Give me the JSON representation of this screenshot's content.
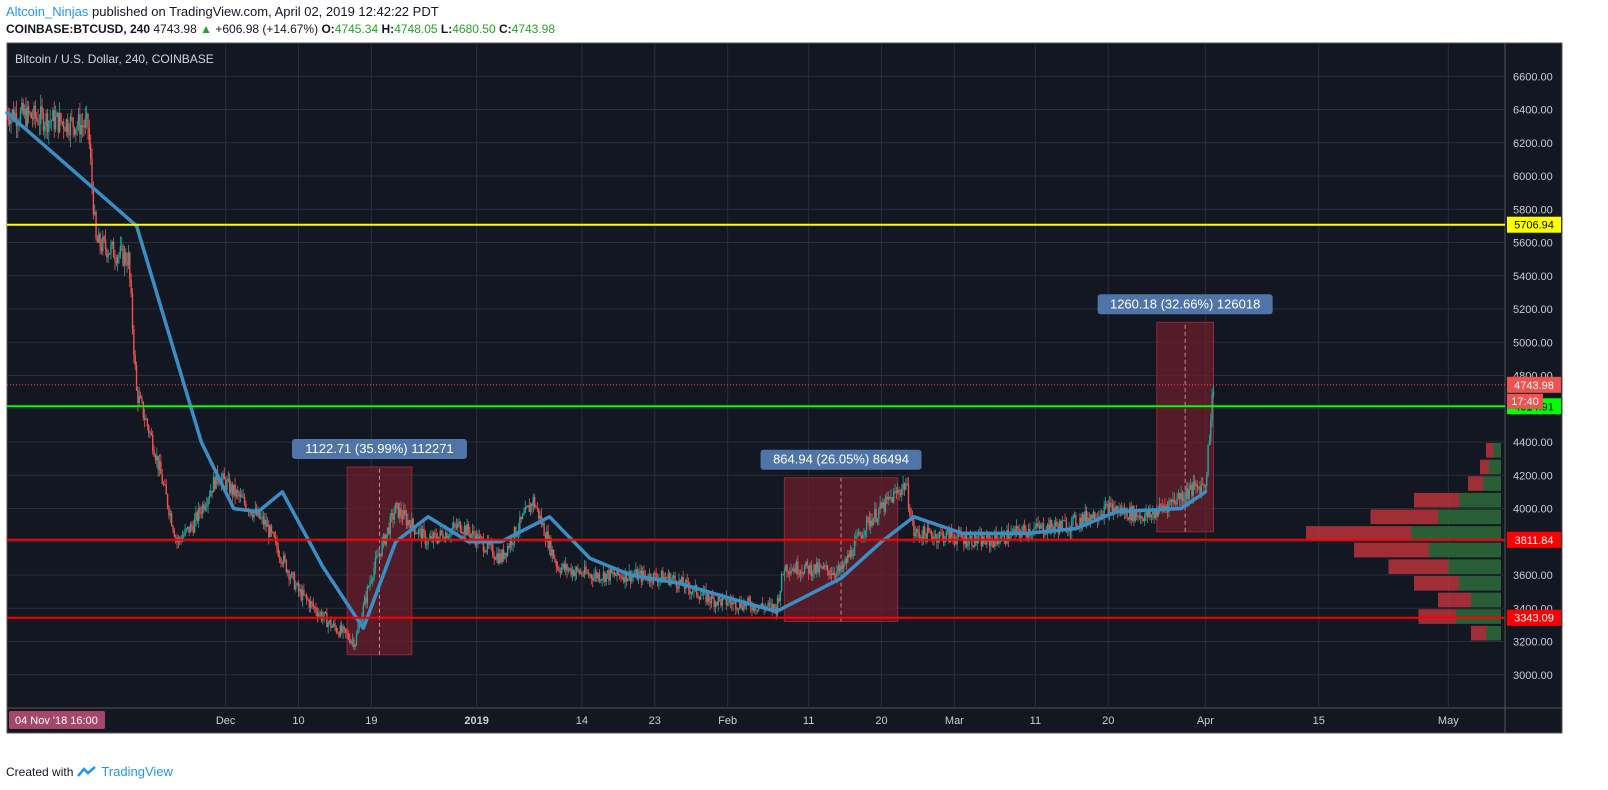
{
  "header": {
    "author": "Altcoin_Ninjas",
    "published_text": "published on TradingView.com, April 02, 2019 12:42:22 PDT",
    "symbol": "COINBASE:BTCUSD, 240",
    "last_price": "4743.98",
    "change": "+606.98 (+14.67%)",
    "open_label": "O:",
    "open": "4745.34",
    "high_label": "H:",
    "high": "4748.05",
    "low_label": "L:",
    "low": "4680.50",
    "close_label": "C:",
    "close": "4743.98"
  },
  "footer": {
    "created_with": "Created with",
    "brand": "TradingView"
  },
  "colors": {
    "background": "#131722",
    "grid": "#2a2e39",
    "ema": "#3b8ec4",
    "up_candle": "#26a69a",
    "down_candle": "#ef5350",
    "yellow_line": "#ffff00",
    "green_line": "#00ff00",
    "red_line": "#ff0000",
    "measure_box": "#6b1f2c",
    "measure_label": "#4f74a8"
  },
  "chart_data": {
    "type": "candlestick",
    "title": "Bitcoin / U.S. Dollar, 240, COINBASE",
    "ylim": [
      2800,
      6800
    ],
    "y_ticks": [
      "6600.00",
      "6400.00",
      "6200.00",
      "6000.00",
      "5800.00",
      "5600.00",
      "5400.00",
      "5200.00",
      "5000.00",
      "4800.00",
      "4600.00",
      "4400.00",
      "4200.00",
      "4000.00",
      "3800.00",
      "3600.00",
      "3400.00",
      "3200.00",
      "3000.00"
    ],
    "x_ticks": [
      {
        "date": "2018-12-01",
        "label": "Dec"
      },
      {
        "date": "2018-12-10",
        "label": "10"
      },
      {
        "date": "2018-12-19",
        "label": "19"
      },
      {
        "date": "2019-01-01",
        "label": "2019"
      },
      {
        "date": "2019-01-14",
        "label": "14"
      },
      {
        "date": "2019-01-23",
        "label": "23"
      },
      {
        "date": "2019-02-01",
        "label": "Feb"
      },
      {
        "date": "2019-02-11",
        "label": "11"
      },
      {
        "date": "2019-02-20",
        "label": "20"
      },
      {
        "date": "2019-03-01",
        "label": "Mar"
      },
      {
        "date": "2019-03-11",
        "label": "11"
      },
      {
        "date": "2019-03-20",
        "label": "20"
      },
      {
        "date": "2019-04-01",
        "label": "Apr"
      },
      {
        "date": "2019-04-15",
        "label": "15"
      },
      {
        "date": "2019-05-01",
        "label": "May"
      }
    ],
    "x_start_label": "04 Nov '18  16:00",
    "x_range": [
      "2018-11-04",
      "2019-05-08"
    ],
    "price_path": [
      [
        "2018-11-04",
        6380
      ],
      [
        "2018-11-14",
        6300
      ],
      [
        "2018-11-15",
        5600
      ],
      [
        "2018-11-19",
        5500
      ],
      [
        "2018-11-20",
        4700
      ],
      [
        "2018-11-22",
        4400
      ],
      [
        "2018-11-25",
        3800
      ],
      [
        "2018-11-27",
        3900
      ],
      [
        "2018-11-30",
        4200
      ],
      [
        "2018-12-03",
        4050
      ],
      [
        "2018-12-06",
        3900
      ],
      [
        "2018-12-10",
        3500
      ],
      [
        "2018-12-14",
        3300
      ],
      [
        "2018-12-17",
        3200
      ],
      [
        "2018-12-19",
        3600
      ],
      [
        "2018-12-22",
        4000
      ],
      [
        "2018-12-26",
        3800
      ],
      [
        "2018-12-30",
        3900
      ],
      [
        "2019-01-04",
        3700
      ],
      [
        "2019-01-08",
        4050
      ],
      [
        "2019-01-11",
        3650
      ],
      [
        "2019-01-15",
        3600
      ],
      [
        "2019-01-20",
        3600
      ],
      [
        "2019-01-25",
        3580
      ],
      [
        "2019-01-30",
        3450
      ],
      [
        "2019-02-04",
        3420
      ],
      [
        "2019-02-07",
        3400
      ],
      [
        "2019-02-08",
        3650
      ],
      [
        "2019-02-15",
        3620
      ],
      [
        "2019-02-18",
        3900
      ],
      [
        "2019-02-23",
        4150
      ],
      [
        "2019-02-24",
        3850
      ],
      [
        "2019-03-01",
        3830
      ],
      [
        "2019-03-05",
        3800
      ],
      [
        "2019-03-10",
        3870
      ],
      [
        "2019-03-15",
        3900
      ],
      [
        "2019-03-20",
        4000
      ],
      [
        "2019-03-25",
        3950
      ],
      [
        "2019-03-29",
        4080
      ],
      [
        "2019-04-01",
        4150
      ],
      [
        "2019-04-02",
        4750
      ]
    ],
    "ema_path": [
      [
        "2018-11-04",
        6380
      ],
      [
        "2018-11-20",
        5700
      ],
      [
        "2018-11-28",
        4400
      ],
      [
        "2018-12-02",
        4000
      ],
      [
        "2018-12-05",
        3980
      ],
      [
        "2018-12-08",
        4100
      ],
      [
        "2018-12-13",
        3650
      ],
      [
        "2018-12-18",
        3280
      ],
      [
        "2018-12-22",
        3800
      ],
      [
        "2018-12-26",
        3950
      ],
      [
        "2018-12-31",
        3800
      ],
      [
        "2019-01-04",
        3800
      ],
      [
        "2019-01-10",
        3950
      ],
      [
        "2019-01-15",
        3700
      ],
      [
        "2019-01-20",
        3600
      ],
      [
        "2019-01-26",
        3550
      ],
      [
        "2019-02-02",
        3450
      ],
      [
        "2019-02-07",
        3380
      ],
      [
        "2019-02-15",
        3580
      ],
      [
        "2019-02-20",
        3800
      ],
      [
        "2019-02-24",
        3950
      ],
      [
        "2019-03-02",
        3850
      ],
      [
        "2019-03-10",
        3850
      ],
      [
        "2019-03-16",
        3880
      ],
      [
        "2019-03-21",
        3980
      ],
      [
        "2019-03-29",
        4000
      ],
      [
        "2019-04-01",
        4100
      ]
    ],
    "horizontal_lines": [
      {
        "price": 5706.94,
        "label": "5706.94",
        "color": "yellow"
      },
      {
        "price": 4614.91,
        "label": "4614.91",
        "color": "green"
      },
      {
        "price": 3811.84,
        "label": "3811.84",
        "color": "red"
      },
      {
        "price": 3343.09,
        "label": "3343.09",
        "color": "red"
      }
    ],
    "last_price_label": "4743.98",
    "countdown_label": "17:40",
    "measurements": [
      {
        "from_date": "2018-12-16",
        "to_date": "2018-12-24",
        "low": 3120,
        "high": 4250,
        "label": "1122.71 (35.99%) 112271"
      },
      {
        "from_date": "2019-02-08",
        "to_date": "2019-02-22",
        "low": 3320,
        "high": 4185,
        "label": "864.94 (26.05%) 86494"
      },
      {
        "from_date": "2019-03-26",
        "to_date": "2019-04-02",
        "low": 3860,
        "high": 5120,
        "label": "1260.18 (32.66%) 126018"
      }
    ],
    "volume_profile": [
      {
        "price": 4350,
        "up": 0.05,
        "down": 0.05
      },
      {
        "price": 4250,
        "up": 0.08,
        "down": 0.06
      },
      {
        "price": 4150,
        "up": 0.12,
        "down": 0.1
      },
      {
        "price": 4050,
        "up": 0.28,
        "down": 0.3
      },
      {
        "price": 3950,
        "up": 0.42,
        "down": 0.45
      },
      {
        "price": 3850,
        "up": 0.6,
        "down": 0.7
      },
      {
        "price": 3750,
        "up": 0.48,
        "down": 0.5
      },
      {
        "price": 3650,
        "up": 0.35,
        "down": 0.4
      },
      {
        "price": 3550,
        "up": 0.28,
        "down": 0.3
      },
      {
        "price": 3450,
        "up": 0.2,
        "down": 0.22
      },
      {
        "price": 3350,
        "up": 0.3,
        "down": 0.25
      },
      {
        "price": 3250,
        "up": 0.1,
        "down": 0.1
      }
    ]
  }
}
